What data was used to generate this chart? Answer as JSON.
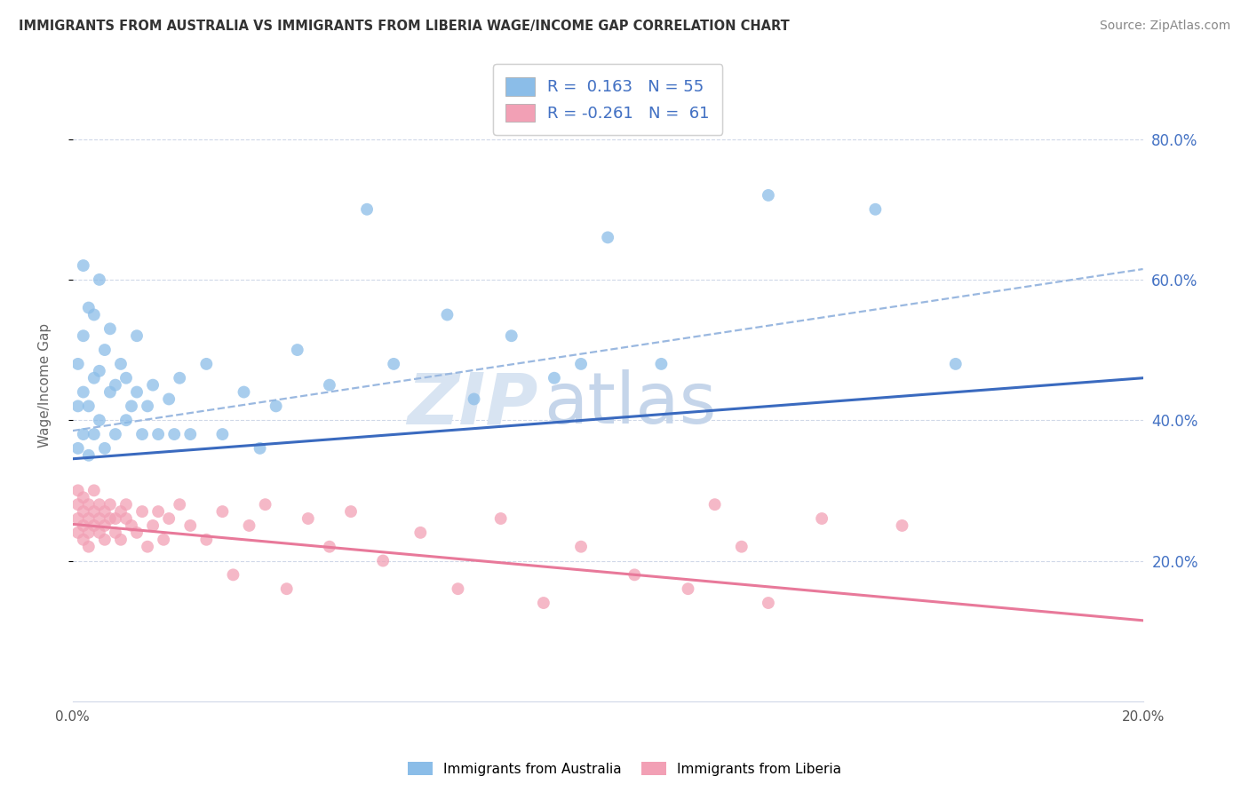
{
  "title": "IMMIGRANTS FROM AUSTRALIA VS IMMIGRANTS FROM LIBERIA WAGE/INCOME GAP CORRELATION CHART",
  "source": "Source: ZipAtlas.com",
  "ylabel": "Wage/Income Gap",
  "xlim": [
    0.0,
    0.2
  ],
  "ylim": [
    0.0,
    0.9
  ],
  "yticks": [
    0.2,
    0.4,
    0.6,
    0.8
  ],
  "xticks": [
    0.0,
    0.2
  ],
  "australia_color": "#8bbde8",
  "liberia_color": "#f2a0b5",
  "australia_line_color": "#3a6abf",
  "liberia_line_color": "#e8799a",
  "dash_line_color": "#9ab8e0",
  "australia_R": 0.163,
  "australia_N": 55,
  "liberia_R": -0.261,
  "liberia_N": 61,
  "legend_label_australia": "Immigrants from Australia",
  "legend_label_liberia": "Immigrants from Liberia",
  "aus_line_x0": 0.0,
  "aus_line_y0": 0.345,
  "aus_line_x1": 0.2,
  "aus_line_y1": 0.46,
  "lib_line_x0": 0.0,
  "lib_line_y0": 0.252,
  "lib_line_x1": 0.2,
  "lib_line_y1": 0.115,
  "dash_line_x0": 0.0,
  "dash_line_y0": 0.385,
  "dash_line_x1": 0.2,
  "dash_line_y1": 0.615,
  "australia_scatter_x": [
    0.001,
    0.001,
    0.001,
    0.002,
    0.002,
    0.002,
    0.002,
    0.003,
    0.003,
    0.003,
    0.004,
    0.004,
    0.004,
    0.005,
    0.005,
    0.005,
    0.006,
    0.006,
    0.007,
    0.007,
    0.008,
    0.008,
    0.009,
    0.01,
    0.01,
    0.011,
    0.012,
    0.012,
    0.013,
    0.014,
    0.015,
    0.016,
    0.018,
    0.019,
    0.02,
    0.022,
    0.025,
    0.028,
    0.032,
    0.035,
    0.038,
    0.042,
    0.048,
    0.055,
    0.06,
    0.07,
    0.075,
    0.082,
    0.09,
    0.095,
    0.1,
    0.11,
    0.13,
    0.15,
    0.165
  ],
  "australia_scatter_y": [
    0.36,
    0.42,
    0.48,
    0.38,
    0.44,
    0.52,
    0.62,
    0.35,
    0.42,
    0.56,
    0.38,
    0.46,
    0.55,
    0.4,
    0.47,
    0.6,
    0.36,
    0.5,
    0.44,
    0.53,
    0.38,
    0.45,
    0.48,
    0.4,
    0.46,
    0.42,
    0.44,
    0.52,
    0.38,
    0.42,
    0.45,
    0.38,
    0.43,
    0.38,
    0.46,
    0.38,
    0.48,
    0.38,
    0.44,
    0.36,
    0.42,
    0.5,
    0.45,
    0.7,
    0.48,
    0.55,
    0.43,
    0.52,
    0.46,
    0.48,
    0.66,
    0.48,
    0.72,
    0.7,
    0.48
  ],
  "liberia_scatter_x": [
    0.001,
    0.001,
    0.001,
    0.001,
    0.002,
    0.002,
    0.002,
    0.002,
    0.003,
    0.003,
    0.003,
    0.003,
    0.004,
    0.004,
    0.004,
    0.005,
    0.005,
    0.005,
    0.006,
    0.006,
    0.006,
    0.007,
    0.007,
    0.008,
    0.008,
    0.009,
    0.009,
    0.01,
    0.01,
    0.011,
    0.012,
    0.013,
    0.014,
    0.015,
    0.016,
    0.017,
    0.018,
    0.02,
    0.022,
    0.025,
    0.028,
    0.03,
    0.033,
    0.036,
    0.04,
    0.044,
    0.048,
    0.052,
    0.058,
    0.065,
    0.072,
    0.08,
    0.088,
    0.095,
    0.105,
    0.115,
    0.12,
    0.125,
    0.13,
    0.14,
    0.155
  ],
  "liberia_scatter_y": [
    0.26,
    0.28,
    0.24,
    0.3,
    0.25,
    0.27,
    0.23,
    0.29,
    0.26,
    0.28,
    0.24,
    0.22,
    0.27,
    0.25,
    0.3,
    0.26,
    0.24,
    0.28,
    0.25,
    0.27,
    0.23,
    0.26,
    0.28,
    0.24,
    0.26,
    0.27,
    0.23,
    0.26,
    0.28,
    0.25,
    0.24,
    0.27,
    0.22,
    0.25,
    0.27,
    0.23,
    0.26,
    0.28,
    0.25,
    0.23,
    0.27,
    0.18,
    0.25,
    0.28,
    0.16,
    0.26,
    0.22,
    0.27,
    0.2,
    0.24,
    0.16,
    0.26,
    0.14,
    0.22,
    0.18,
    0.16,
    0.28,
    0.22,
    0.14,
    0.26,
    0.25
  ]
}
